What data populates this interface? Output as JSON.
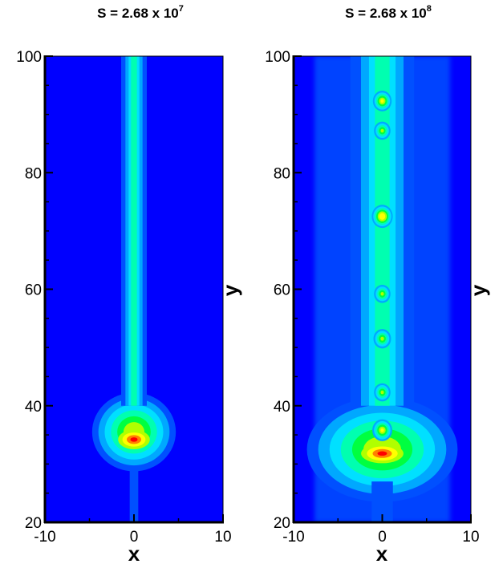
{
  "chart_data": [
    {
      "type": "heatmap",
      "title": "S = 2.68 x 10",
      "title_exponent": "7",
      "xlabel": "x",
      "ylabel": "y",
      "xlim": [
        -10,
        10
      ],
      "ylim": [
        20,
        100
      ],
      "xticks": [
        "-10",
        "0",
        "10"
      ],
      "yticks": [
        "20",
        "40",
        "60",
        "80",
        "100"
      ],
      "background_color": "#0000ff",
      "colormap": [
        "#0000ff",
        "#0050ff",
        "#00a8ff",
        "#00e0ff",
        "#00ffb0",
        "#00ff40",
        "#b0ff00",
        "#ffff00",
        "#ff8000",
        "#ff0000"
      ],
      "plume": {
        "stem_x": 0,
        "stem_half_width": 0.6,
        "stem_y_range": [
          40,
          100
        ],
        "head_center": [
          0,
          35.5
        ],
        "head_outer_halfwidth": 4.7,
        "head_y_range": [
          27,
          40.5
        ],
        "peak": [
          0,
          34.2
        ],
        "inflow_stem_y_range": [
          20,
          29
        ]
      },
      "blobs": []
    },
    {
      "type": "heatmap",
      "title": "S = 2.68 x 10",
      "title_exponent": "8",
      "xlabel": "x",
      "ylabel": "y",
      "xlim": [
        -10,
        10
      ],
      "ylim": [
        20,
        100
      ],
      "xticks": [
        "-10",
        "0",
        "10"
      ],
      "yticks": [
        "20",
        "40",
        "60",
        "80",
        "100"
      ],
      "background_color": "#0000ff",
      "colormap": [
        "#0000ff",
        "#0050ff",
        "#00a8ff",
        "#00e0ff",
        "#00ffb0",
        "#00ff40",
        "#b0ff00",
        "#ffff00",
        "#ff8000",
        "#ff0000"
      ],
      "plume": {
        "stem_x": 0,
        "stem_half_width": 1.5,
        "stem_y_range": [
          40,
          100
        ],
        "head_center": [
          0,
          32.5
        ],
        "head_outer_halfwidth": 8.5,
        "head_y_range": [
          25,
          43
        ],
        "peak": [
          0,
          31.8
        ],
        "inflow_stem_y_range": [
          20,
          27
        ]
      },
      "blobs": [
        {
          "x": 0,
          "y": 92.3,
          "value": 0.55
        },
        {
          "x": 0,
          "y": 87.2,
          "value": 0.45
        },
        {
          "x": 0,
          "y": 72.5,
          "value": 0.65
        },
        {
          "x": 0,
          "y": 59.2,
          "value": 0.45
        },
        {
          "x": 0,
          "y": 51.5,
          "value": 0.5
        },
        {
          "x": 0,
          "y": 42.3,
          "value": 0.45
        },
        {
          "x": 0,
          "y": 35.8,
          "value": 0.6
        }
      ]
    }
  ]
}
